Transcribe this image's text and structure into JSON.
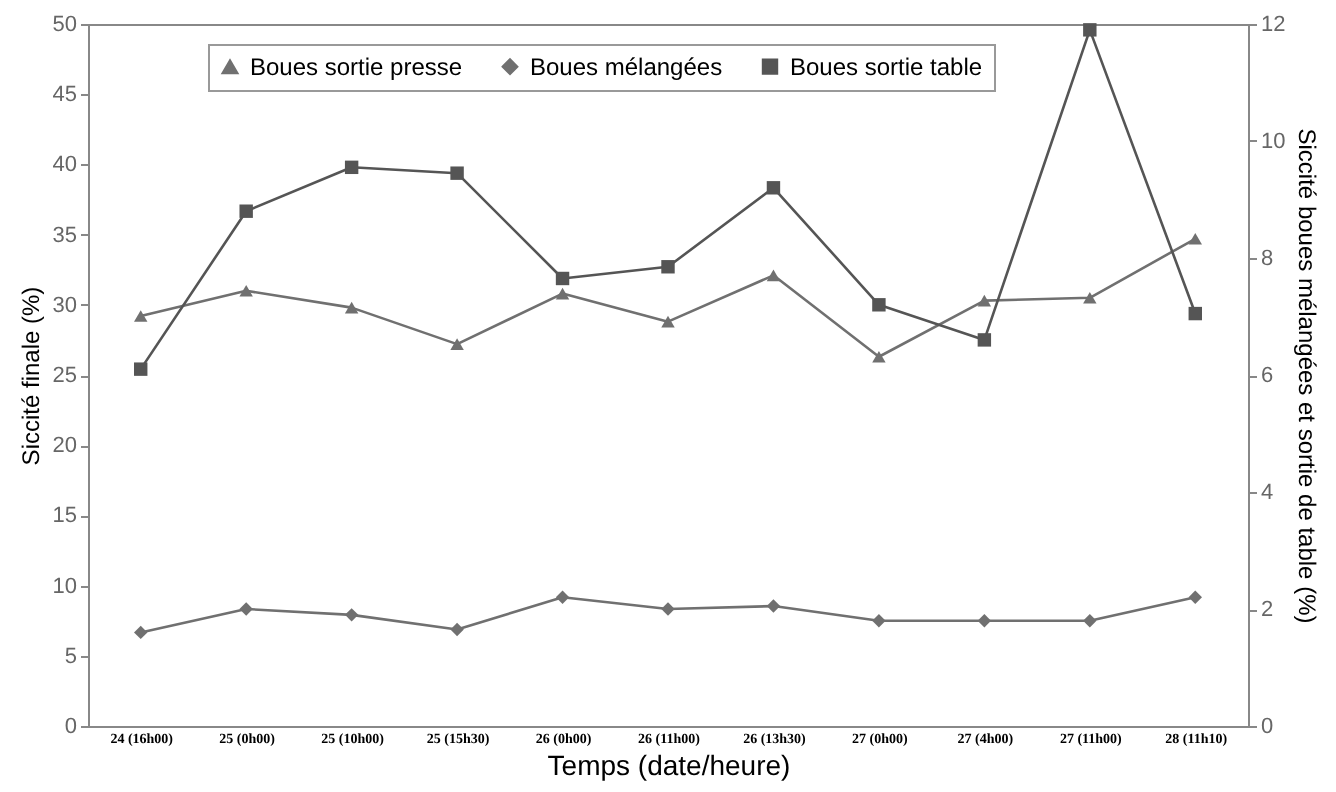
{
  "chart_data": {
    "type": "line",
    "xlabel": "Temps (date/heure)",
    "ylabel": "Siccité finale (%)",
    "y2label": "Siccité boues mélangées et sortie de table (%)",
    "categories": [
      "24 (16h00)",
      "25 (0h00)",
      "25 (10h00)",
      "25 (15h30)",
      "26 (0h00)",
      "26 (11h00)",
      "26 (13h30)",
      "27 (0h00)",
      "27 (4h00)",
      "27 (11h00)",
      "28 (11h10)"
    ],
    "series": [
      {
        "name": "Boues sortie presse",
        "color": "#707070",
        "marker": "triangle",
        "values": [
          29.2,
          31.0,
          29.8,
          27.2,
          30.8,
          28.8,
          32.1,
          26.3,
          30.3,
          30.5,
          34.7
        ]
      },
      {
        "name": "Boues mélangées",
        "color": "#707070",
        "marker": "diamond",
        "axis": "y2",
        "values": [
          1.6,
          2.0,
          1.9,
          1.65,
          2.2,
          2.0,
          2.05,
          1.8,
          1.8,
          1.8,
          2.2
        ]
      },
      {
        "name": "Boues sortie table",
        "color": "#555555",
        "marker": "square",
        "axis": "y2",
        "values": [
          6.1,
          8.8,
          9.55,
          9.45,
          7.65,
          7.85,
          9.2,
          7.2,
          6.6,
          11.9,
          7.05
        ]
      }
    ],
    "ylim": [
      0,
      50
    ],
    "yticks": [
      0,
      5,
      10,
      15,
      20,
      25,
      30,
      35,
      40,
      45,
      50
    ],
    "y2lim": [
      0,
      12
    ],
    "y2ticks": [
      0,
      2,
      4,
      6,
      8,
      10,
      12
    ],
    "legend": "top",
    "grid": false
  }
}
